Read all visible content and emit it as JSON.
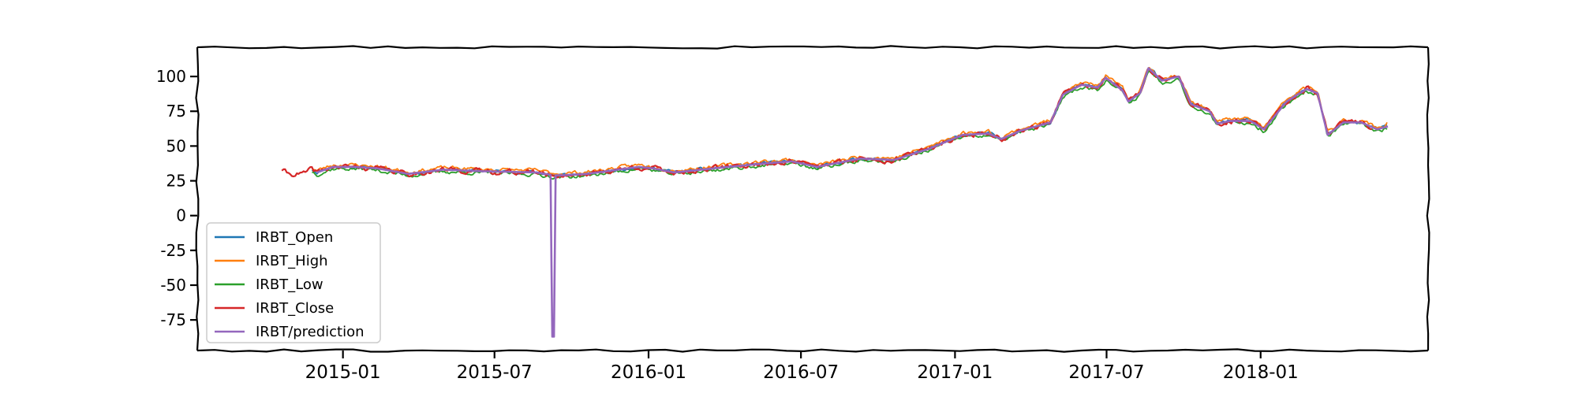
{
  "chart_data": {
    "type": "line",
    "title": "",
    "xlabel": "",
    "ylabel": "",
    "xlim": [
      "2014-07-11",
      "2018-07-20"
    ],
    "ylim": [
      -97,
      121
    ],
    "grid": false,
    "legend_position": "lower-left",
    "x_ticks": [
      "2015-01",
      "2015-07",
      "2016-01",
      "2016-07",
      "2017-01",
      "2017-07",
      "2018-01"
    ],
    "y_ticks": [
      100,
      75,
      50,
      25,
      0,
      -25,
      -50,
      -75
    ],
    "y_tick_labels": [
      "100",
      "75",
      "50",
      "25",
      "0",
      "-25",
      "-50",
      "-75"
    ],
    "colors": {
      "IRBT_Open": "#1f77b4",
      "IRBT_High": "#ff7f0e",
      "IRBT_Low": "#2ca02c",
      "IRBT_Close": "#d62728",
      "IRBT/prediction": "#9467bd"
    },
    "anchors": [
      [
        "2014-10-20",
        33
      ],
      [
        "2014-10-28",
        30
      ],
      [
        "2014-11-15",
        30
      ],
      [
        "2014-11-25",
        33
      ],
      [
        "2014-12-01",
        31
      ],
      [
        "2014-12-20",
        35
      ],
      [
        "2015-01-15",
        35
      ],
      [
        "2015-02-10",
        34
      ],
      [
        "2015-03-01",
        32
      ],
      [
        "2015-03-20",
        30
      ],
      [
        "2015-05-01",
        33
      ],
      [
        "2015-06-10",
        32
      ],
      [
        "2015-08-20",
        31
      ],
      [
        "2015-09-10",
        29
      ],
      [
        "2015-09-20",
        29
      ],
      [
        "2015-10-20",
        30
      ],
      [
        "2015-12-20",
        35
      ],
      [
        "2016-01-05",
        34
      ],
      [
        "2016-02-01",
        31
      ],
      [
        "2016-03-20",
        34
      ],
      [
        "2016-05-10",
        37
      ],
      [
        "2016-06-20",
        39
      ],
      [
        "2016-07-20",
        35
      ],
      [
        "2016-09-10",
        41
      ],
      [
        "2016-10-20",
        40
      ],
      [
        "2016-11-10",
        44
      ],
      [
        "2016-12-01",
        48
      ],
      [
        "2017-01-10",
        58
      ],
      [
        "2017-02-10",
        59
      ],
      [
        "2017-02-25",
        55
      ],
      [
        "2017-03-20",
        61
      ],
      [
        "2017-04-25",
        67
      ],
      [
        "2017-05-10",
        87
      ],
      [
        "2017-06-01",
        94
      ],
      [
        "2017-06-20",
        92
      ],
      [
        "2017-06-30",
        99
      ],
      [
        "2017-07-20",
        90
      ],
      [
        "2017-07-27",
        82
      ],
      [
        "2017-08-10",
        88
      ],
      [
        "2017-08-20",
        106
      ],
      [
        "2017-09-05",
        97
      ],
      [
        "2017-09-25",
        100
      ],
      [
        "2017-10-10",
        80
      ],
      [
        "2017-11-01",
        75
      ],
      [
        "2017-11-10",
        66
      ],
      [
        "2017-11-25",
        68
      ],
      [
        "2017-12-20",
        68
      ],
      [
        "2018-01-05",
        62
      ],
      [
        "2018-02-01",
        82
      ],
      [
        "2018-02-25",
        91
      ],
      [
        "2018-03-10",
        88
      ],
      [
        "2018-03-22",
        58
      ],
      [
        "2018-04-10",
        67
      ],
      [
        "2018-05-01",
        67
      ],
      [
        "2018-05-20",
        62
      ],
      [
        "2018-06-02",
        64
      ]
    ],
    "prediction_dip": {
      "start": "2015-09-06",
      "end": "2015-09-12",
      "min": -87
    },
    "series": [
      {
        "name": "IRBT_Open",
        "start": "2014-11-25",
        "end": "2018-06-02",
        "offset": 0.2,
        "noise": 0.9,
        "seed": 11,
        "end_value": 65
      },
      {
        "name": "IRBT_High",
        "start": "2014-11-25",
        "end": "2018-06-02",
        "offset": 1.4,
        "noise": 1.1,
        "seed": 23,
        "end_value": 67
      },
      {
        "name": "IRBT_Low",
        "start": "2014-11-25",
        "end": "2018-06-02",
        "offset": -1.3,
        "noise": 1.1,
        "seed": 37,
        "end_value": 62
      },
      {
        "name": "IRBT_Close",
        "start": "2014-10-20",
        "end": "2018-05-15",
        "offset": 0,
        "noise": 1.5,
        "seed": 41,
        "end_value": 62
      },
      {
        "name": "IRBT/prediction",
        "start": "2014-12-01",
        "end": "2018-06-02",
        "offset": 0,
        "noise": 0.0,
        "seed": 53,
        "end_value": 64
      }
    ]
  }
}
